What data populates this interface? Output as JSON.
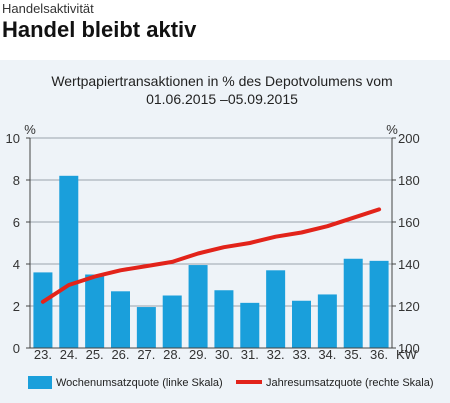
{
  "header": {
    "kicker": "Handelsaktivität",
    "headline": "Handel bleibt aktiv"
  },
  "chart_data": {
    "type": "bar",
    "title_line1": "Wertpapiertransaktionen in % des Depotvolumens vom",
    "title_line2": "01.06.2015 –05.09.2015",
    "categories": [
      "23.",
      "24.",
      "25.",
      "26.",
      "27.",
      "28.",
      "29.",
      "30.",
      "31.",
      "32.",
      "33.",
      "34.",
      "35.",
      "36."
    ],
    "x_unit": "KW",
    "left_axis": {
      "unit": "%",
      "min": 0,
      "max": 10,
      "ticks": [
        0,
        2,
        4,
        6,
        8,
        10
      ]
    },
    "right_axis": {
      "unit": "%",
      "min": 100,
      "max": 200,
      "ticks": [
        100,
        120,
        140,
        160,
        180,
        200
      ]
    },
    "series": [
      {
        "name": "Wochenumsatzquote (linke Skala)",
        "type": "bar",
        "axis": "left",
        "color": "#1a9fdb",
        "values": [
          3.6,
          8.2,
          3.5,
          2.7,
          1.95,
          2.5,
          3.95,
          2.75,
          2.15,
          3.7,
          2.25,
          2.55,
          4.25,
          4.15
        ]
      },
      {
        "name": "Jahresumsatzquote (rechte Skala)",
        "type": "line",
        "axis": "right",
        "color": "#e2231a",
        "values": [
          122,
          130,
          134,
          137,
          139,
          141,
          145,
          148,
          150,
          153,
          155,
          158,
          162,
          166
        ]
      }
    ],
    "grid": "horizontal"
  }
}
